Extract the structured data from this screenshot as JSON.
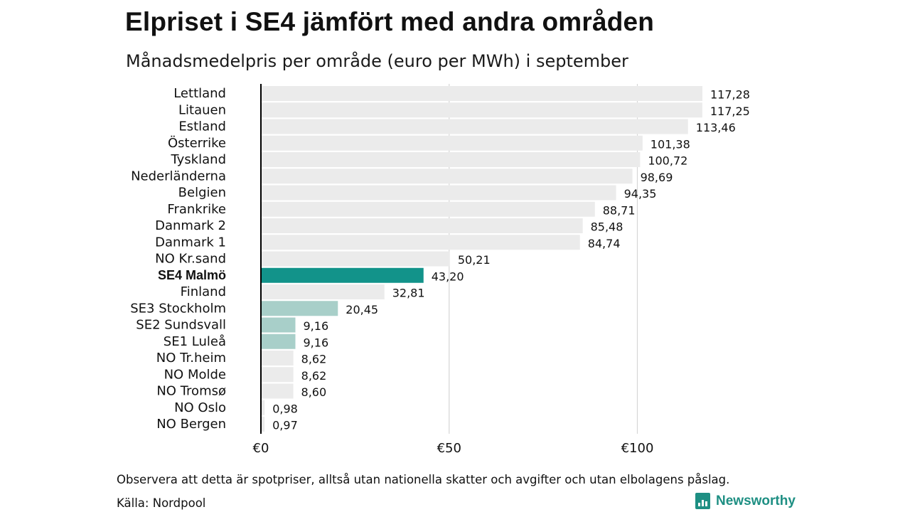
{
  "chart_data": {
    "type": "bar",
    "orientation": "horizontal",
    "title": "Elpriset i SE4 jämfört med andra områden",
    "subtitle": "Månadsmedelpris per område (euro per MWh) i september",
    "categories": [
      "Lettland",
      "Litauen",
      "Estland",
      "Österrike",
      "Tyskland",
      "Nederländerna",
      "Belgien",
      "Frankrike",
      "Danmark  2",
      "Danmark  1",
      "NO Kr.sand",
      "SE4 Malmö",
      "Finland",
      "SE3  Stockholm",
      "SE2  Sundsvall",
      "SE1  Luleå",
      "NO Tr.heim",
      "NO Molde",
      "NO Tromsø",
      "NO Oslo",
      "NO Bergen"
    ],
    "values": [
      117.28,
      117.25,
      113.46,
      101.38,
      100.72,
      98.69,
      94.35,
      88.71,
      85.48,
      84.74,
      50.21,
      43.2,
      32.81,
      20.45,
      9.16,
      9.16,
      8.62,
      8.62,
      8.6,
      0.98,
      0.97
    ],
    "value_labels": [
      "117,28",
      "117,25",
      "113,46",
      "101,38",
      "100,72",
      "98,69",
      "94,35",
      "88,71",
      "85,48",
      "84,74",
      "50,21",
      "43,20",
      "32,81",
      "20,45",
      "9,16",
      "9,16",
      "8,62",
      "8,62",
      "8,60",
      "0,98",
      "0,97"
    ],
    "highlight": "SE4 Malmö",
    "secondary_highlight": [
      "SE3  Stockholm",
      "SE2  Sundsvall",
      "SE1  Luleå"
    ],
    "x_ticks": [
      0,
      50,
      100
    ],
    "x_tick_labels": [
      "€0",
      "€50",
      "€100"
    ],
    "xlim": [
      0,
      117.28
    ],
    "grid": true,
    "legend": "none",
    "colors": {
      "highlight": "#12938a",
      "secondary": "#a8cfc9",
      "default": "#ebebeb",
      "grid": "#d6d6d6",
      "axis": "#000000"
    }
  },
  "footer": {
    "note": "Observera att detta är spotpriser, alltså utan nationella skatter och avgifter och utan elbolagens påslag.",
    "source": "Källa: Nordpool"
  },
  "brand": {
    "name": "Newsworthy",
    "icon": "bar-chart-icon",
    "color": "#1e8f83"
  }
}
